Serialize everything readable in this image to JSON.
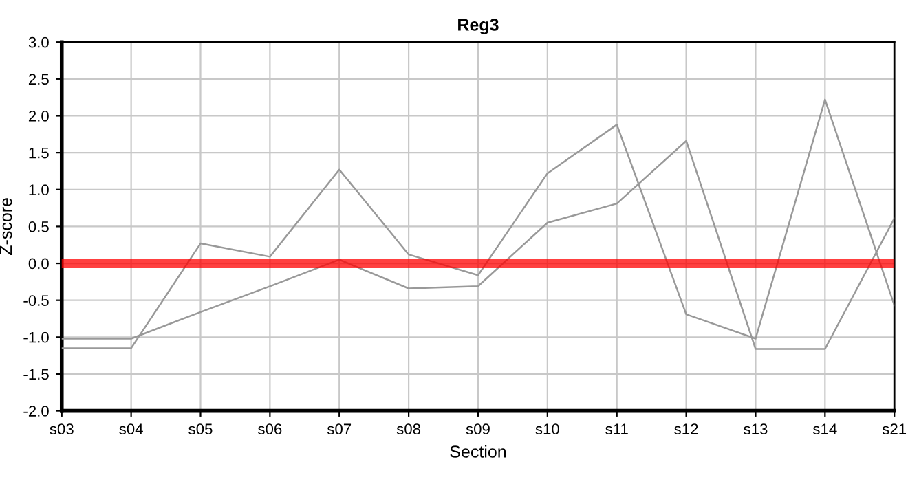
{
  "chart_data": {
    "type": "line",
    "title": "Reg3",
    "xlabel": "Section",
    "ylabel": "Z-score",
    "categories": [
      "s03",
      "s04",
      "s05",
      "s06",
      "s07",
      "s08",
      "s09",
      "s10",
      "s11",
      "s12",
      "s13",
      "s14",
      "s21"
    ],
    "series": [
      {
        "color": "#999999",
        "values": [
          -1.15,
          -1.15,
          0.27,
          0.09,
          1.27,
          0.12,
          -0.16,
          1.22,
          1.88,
          -0.69,
          -1.02,
          2.22,
          -0.57
        ]
      },
      {
        "color": "#999999",
        "values": [
          -1.02,
          -1.02,
          -0.66,
          -0.31,
          0.05,
          -0.34,
          -0.31,
          0.55,
          0.81,
          1.66,
          -1.16,
          -1.16,
          0.61
        ]
      }
    ],
    "ylim": [
      -2.0,
      3.0
    ],
    "yticks": [
      {
        "value": -2.0,
        "label": "-2.0"
      },
      {
        "value": -1.5,
        "label": "-1.5"
      },
      {
        "value": -1.0,
        "label": "-1.0"
      },
      {
        "value": -0.5,
        "label": "-0.5"
      },
      {
        "value": 0.0,
        "label": "0.0"
      },
      {
        "value": 0.5,
        "label": "0.5"
      },
      {
        "value": 1.0,
        "label": "1.0"
      },
      {
        "value": 1.5,
        "label": "1.5"
      },
      {
        "value": 2.0,
        "label": "2.0"
      },
      {
        "value": 2.5,
        "label": "2.5"
      },
      {
        "value": 3.0,
        "label": "3.0"
      }
    ],
    "ref_lines": [
      {
        "axis": "y",
        "value": 0,
        "color": "#ff0000"
      }
    ],
    "grid": true,
    "legend": false,
    "marker": "none",
    "line_style": "solid"
  }
}
